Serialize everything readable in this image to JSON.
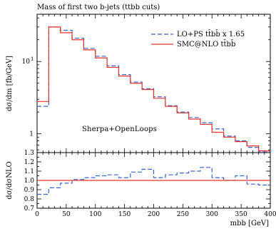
{
  "chart_data": [
    {
      "type": "line",
      "title": "Mass of first two b-jets (ttbb cuts)",
      "ylabel": "dσ/dm [fb/GeV]",
      "yscale": "log",
      "ylim": [
        0.55,
        45
      ],
      "xlim": [
        0,
        400
      ],
      "ytick_labels": [
        "1",
        "10"
      ],
      "ytick_exponent": "1",
      "annotation": "Sherpa+OpenLoops",
      "legend_position": "top-right",
      "bin_edges": [
        0,
        20,
        40,
        60,
        80,
        100,
        120,
        140,
        160,
        180,
        200,
        220,
        240,
        260,
        280,
        300,
        320,
        340,
        360,
        380,
        400
      ],
      "series": [
        {
          "name": "LO+PS tt̄bb̄ x 1.65",
          "style": "dashed",
          "color": "#3366cc",
          "values": [
            2.4,
            30,
            27,
            21,
            15.2,
            11.8,
            8.7,
            6.6,
            5.2,
            4.2,
            3.25,
            2.45,
            2.0,
            1.68,
            1.42,
            1.17,
            0.93,
            0.8,
            0.65,
            0.56
          ]
        },
        {
          "name": "SMC@NLO tt̄bb̄",
          "style": "solid",
          "color": "#e8302a",
          "values": [
            2.8,
            30,
            25,
            20,
            14.5,
            11.2,
            8.3,
            6.3,
            5.0,
            4.1,
            3.1,
            2.4,
            1.95,
            1.6,
            1.35,
            1.05,
            0.9,
            0.78,
            0.68,
            0.58
          ]
        }
      ]
    },
    {
      "type": "line",
      "ylabel": "dσ/dσNLO",
      "xlabel": "mbb [GeV]",
      "xlim": [
        0,
        400
      ],
      "ylim": [
        0.7,
        1.3
      ],
      "xtick_labels": [
        "0",
        "50",
        "100",
        "150",
        "200",
        "250",
        "300",
        "350",
        "400"
      ],
      "ytick_labels": [
        "0.7",
        "0.8",
        "0.9",
        "1.0",
        "1.1",
        "1.2",
        "1.3"
      ],
      "bin_edges": [
        0,
        20,
        40,
        60,
        80,
        100,
        120,
        140,
        160,
        180,
        200,
        220,
        240,
        260,
        280,
        300,
        320,
        340,
        360,
        380,
        400
      ],
      "series": [
        {
          "style": "dashed",
          "color": "#3366cc",
          "values": [
            0.85,
            0.92,
            0.97,
            1.01,
            1.03,
            1.05,
            1.06,
            1.03,
            1.09,
            1.12,
            1.03,
            1.06,
            1.08,
            1.1,
            1.14,
            1.03,
            1.0,
            1.05,
            0.96,
            0.95
          ]
        },
        {
          "style": "solid",
          "color": "#e8302a",
          "values": [
            1,
            1,
            1,
            1,
            1,
            1,
            1,
            1,
            1,
            1,
            1,
            1,
            1,
            1,
            1,
            1,
            1,
            1,
            1,
            1
          ]
        }
      ]
    }
  ]
}
